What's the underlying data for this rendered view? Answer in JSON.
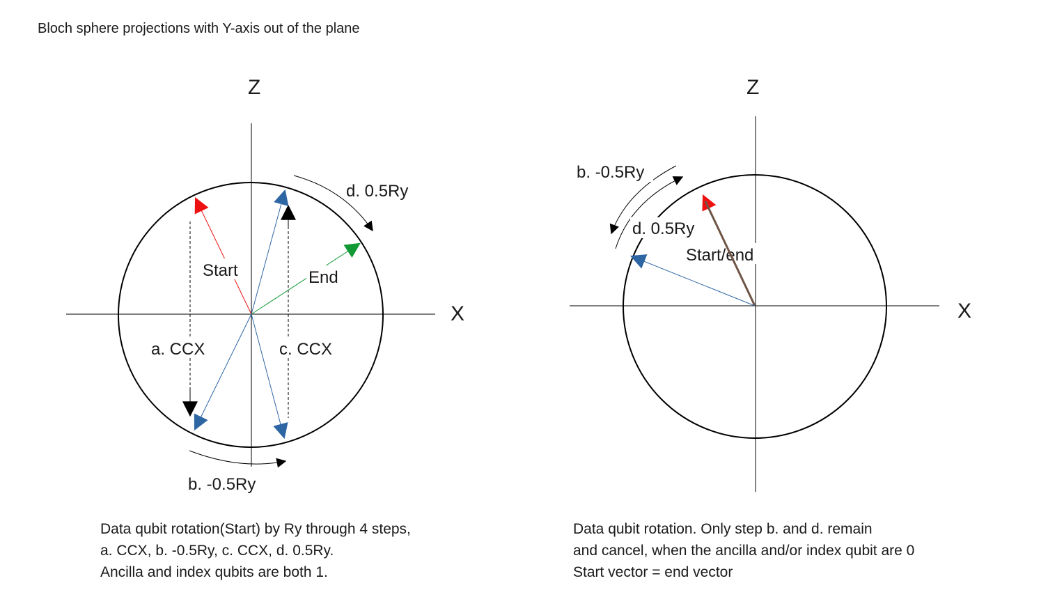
{
  "title": "Bloch sphere projections with Y-axis out of the plane",
  "colors": {
    "red": "#ee1111",
    "blue": "#2e65a3",
    "green": "#119933",
    "brown": "#6e5546",
    "black": "#000000"
  },
  "left_panel": {
    "z_label": "Z",
    "x_label": "X",
    "start_label": "Start",
    "end_label": "End",
    "step_a": "a. CCX",
    "step_b": "b. -0.5Ry",
    "step_c": "c. CCX",
    "step_d": "d. 0.5Ry",
    "caption": [
      "Data qubit rotation(Start) by Ry through 4 steps,",
      "a. CCX, b. -0.5Ry, c. CCX, d. 0.5Ry.",
      "Ancilla and index qubits are both 1."
    ]
  },
  "right_panel": {
    "z_label": "Z",
    "x_label": "X",
    "start_end_label": "Start/end",
    "step_b": "b. -0.5Ry",
    "step_d": "d. 0.5Ry",
    "caption": [
      "Data qubit rotation. Only step b. and d. remain",
      "and cancel, when the ancilla and/or index qubit are 0",
      "Start vector = end vector"
    ]
  }
}
